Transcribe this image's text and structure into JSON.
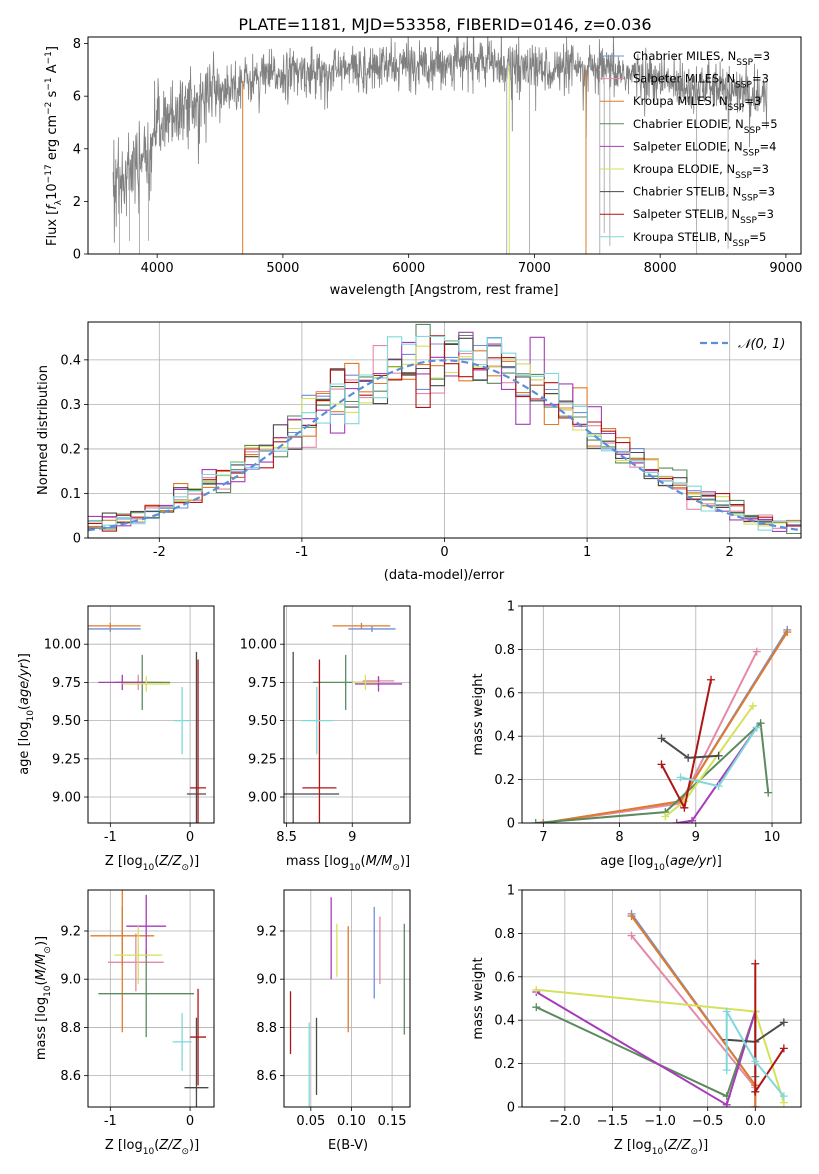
{
  "figure": {
    "title": "PLATE=1181, MJD=53358, FIBERID=0146, z=0.036"
  },
  "colors": {
    "Chabrier MILES": "#6f8fd8",
    "Salpeter MILES": "#e58aa6",
    "Kroupa MILES": "#e07b2a",
    "Chabrier ELODIE": "#5a8a5e",
    "Salpeter ELODIE": "#a63db8",
    "Kroupa ELODIE": "#d4e25a",
    "Chabrier STELIB": "#4a4a4a",
    "Salpeter STELIB": "#b01515",
    "Kroupa STELIB": "#7fd8dc"
  },
  "chart_data": [
    {
      "id": "spectrum",
      "type": "line",
      "title": "PLATE=1181, MJD=53358, FIBERID=0146, z=0.036",
      "xlabel": "wavelength [Angstrom, rest frame]",
      "ylabel": "Flux [fλ10⁻¹⁷ erg cm⁻² s⁻¹ A⁻¹]",
      "xlim": [
        3450,
        9120
      ],
      "ylim": [
        0,
        8.25
      ],
      "xticks": [
        4000,
        5000,
        6000,
        7000,
        8000,
        9000
      ],
      "yticks": [
        0,
        2,
        4,
        6,
        8
      ],
      "grid": false,
      "legend_position": "upper-right",
      "legend": [
        {
          "label": "Chabrier MILES, N",
          "sub": "SSP",
          "suffix": "=3",
          "model": "Chabrier MILES"
        },
        {
          "label": "Salpeter MILES, N",
          "sub": "SSP",
          "suffix": "=3",
          "model": "Salpeter MILES"
        },
        {
          "label": "Kroupa MILES, N",
          "sub": "SSP",
          "suffix": "=3",
          "model": "Kroupa MILES"
        },
        {
          "label": "Chabrier ELODIE, N",
          "sub": "SSP",
          "suffix": "=5",
          "model": "Chabrier ELODIE"
        },
        {
          "label": "Salpeter ELODIE, N",
          "sub": "SSP",
          "suffix": "=4",
          "model": "Salpeter ELODIE"
        },
        {
          "label": "Kroupa ELODIE, N",
          "sub": "SSP",
          "suffix": "=3",
          "model": "Kroupa ELODIE"
        },
        {
          "label": "Chabrier STELIB, N",
          "sub": "SSP",
          "suffix": "=3",
          "model": "Chabrier STELIB"
        },
        {
          "label": "Salpeter STELIB, N",
          "sub": "SSP",
          "suffix": "=3",
          "model": "Salpeter STELIB"
        },
        {
          "label": "Kroupa STELIB, N",
          "sub": "SSP",
          "suffix": "=5",
          "model": "Kroupa STELIB"
        }
      ],
      "continuum": {
        "x": [
          3650,
          3700,
          3800,
          3900,
          4000,
          4100,
          4200,
          4300,
          4400,
          4600,
          4800,
          5000,
          5200,
          5500,
          5800,
          6000,
          6300,
          6600,
          6900,
          7200,
          7500,
          7800,
          8100,
          8400,
          8700,
          8850
        ],
        "y": [
          2.7,
          3.0,
          3.3,
          3.5,
          4.7,
          5.2,
          5.6,
          5.9,
          6.1,
          6.45,
          6.7,
          6.85,
          6.9,
          7.0,
          7.1,
          7.2,
          7.3,
          7.3,
          7.1,
          7.0,
          7.0,
          6.8,
          6.5,
          6.3,
          6.1,
          5.8
        ]
      },
      "model_ranges": {
        "Chabrier MILES": [
          3700,
          7400
        ],
        "Salpeter MILES": [
          3700,
          7400
        ],
        "Kroupa MILES": [
          3700,
          7400
        ],
        "Chabrier ELODIE": [
          3900,
          6800
        ],
        "Salpeter ELODIE": [
          3900,
          6800
        ],
        "Kroupa ELODIE": [
          3900,
          6800
        ],
        "Chabrier STELIB": [
          3650,
          8850
        ],
        "Salpeter STELIB": [
          3650,
          8850
        ],
        "Kroupa STELIB": [
          3650,
          8850
        ]
      }
    },
    {
      "id": "residuals",
      "type": "line",
      "xlabel": "(data-model)/error",
      "ylabel": "Normed distribution",
      "xlim": [
        -2.5,
        2.5
      ],
      "ylim": [
        0,
        0.485
      ],
      "xticks": [
        -2,
        -1,
        0,
        1,
        2
      ],
      "yticks": [
        0.0,
        0.1,
        0.2,
        0.3,
        0.4
      ],
      "grid": true,
      "legend_position": "upper-right",
      "normal_label": "𝒩(0, 1)",
      "normal_color": "#5b8fd8",
      "bins_start": -2.5,
      "bin_width": 0.1,
      "histogram_models": [
        "Chabrier MILES",
        "Salpeter MILES",
        "Kroupa MILES",
        "Chabrier ELODIE",
        "Salpeter ELODIE",
        "Kroupa ELODIE",
        "Chabrier STELIB",
        "Salpeter STELIB",
        "Kroupa STELIB"
      ]
    },
    {
      "id": "age-vs-z",
      "type": "scatter",
      "xlabel": "Z [log₁₀(Z/Z⊙)]",
      "ylabel": "age  [log₁₀(age/yr)]",
      "xlim": [
        -1.28,
        0.3
      ],
      "ylim": [
        8.83,
        10.25
      ],
      "xticks": [
        -1,
        0
      ],
      "yticks": [
        9.0,
        9.25,
        9.5,
        9.75,
        10.0
      ],
      "ytick_labels": [
        "9.00",
        "9.25",
        "9.50",
        "9.75",
        "10.00"
      ],
      "grid": true,
      "errorbars": [
        {
          "model": "Chabrier MILES",
          "x": -1.0,
          "xerr": 0.38,
          "y": 10.1,
          "yerr": 0.02
        },
        {
          "model": "Salpeter MILES",
          "x": -0.65,
          "xerr": 0.3,
          "y": 9.75,
          "yerr": 0.05
        },
        {
          "model": "Kroupa MILES",
          "x": -1.0,
          "xerr": 0.38,
          "y": 10.12,
          "yerr": 0.02
        },
        {
          "model": "Chabrier ELODIE",
          "x": -0.6,
          "xerr": 0.35,
          "y": 9.75,
          "yerr": 0.18
        },
        {
          "model": "Salpeter ELODIE",
          "x": -0.85,
          "xerr": 0.3,
          "y": 9.75,
          "yerr": 0.05
        },
        {
          "model": "Kroupa ELODIE",
          "x": -0.55,
          "xerr": 0.3,
          "y": 9.74,
          "yerr": 0.05
        },
        {
          "model": "Chabrier STELIB",
          "x": 0.08,
          "xerr": 0.12,
          "y": 9.02,
          "yerr": 0.93
        },
        {
          "model": "Salpeter STELIB",
          "x": 0.1,
          "xerr": 0.1,
          "y": 9.06,
          "yerr": 0.84
        },
        {
          "model": "Kroupa STELIB",
          "x": -0.1,
          "xerr": 0.1,
          "y": 9.5,
          "yerr": 0.22
        }
      ]
    },
    {
      "id": "age-vs-mass",
      "type": "scatter",
      "xlabel": "mass [log₁₀(M/M⊙)]",
      "xlim": [
        8.48,
        9.44
      ],
      "ylim": [
        8.83,
        10.25
      ],
      "xticks": [
        8.5,
        9.0
      ],
      "yticks": [
        9.0,
        9.25,
        9.5,
        9.75,
        10.0
      ],
      "ytick_labels": [
        "9.00",
        "9.25",
        "9.50",
        "9.75",
        "10.00"
      ],
      "grid": true,
      "errorbars": [
        {
          "model": "Chabrier MILES",
          "x": 9.15,
          "xerr": 0.18,
          "y": 10.1,
          "yerr": 0.02
        },
        {
          "model": "Salpeter MILES",
          "x": 9.2,
          "xerr": 0.12,
          "y": 9.76,
          "yerr": 0.03
        },
        {
          "model": "Kroupa MILES",
          "x": 9.07,
          "xerr": 0.22,
          "y": 10.12,
          "yerr": 0.02
        },
        {
          "model": "Chabrier ELODIE",
          "x": 8.95,
          "xerr": 0.25,
          "y": 9.75,
          "yerr": 0.18
        },
        {
          "model": "Salpeter ELODIE",
          "x": 9.2,
          "xerr": 0.18,
          "y": 9.74,
          "yerr": 0.05
        },
        {
          "model": "Kroupa ELODIE",
          "x": 9.1,
          "xerr": 0.1,
          "y": 9.75,
          "yerr": 0.05
        },
        {
          "model": "Chabrier STELIB",
          "x": 8.55,
          "xerr": 0.35,
          "y": 9.02,
          "yerr": 0.93
        },
        {
          "model": "Salpeter STELIB",
          "x": 8.75,
          "xerr": 0.13,
          "y": 9.06,
          "yerr": 0.84
        },
        {
          "model": "Kroupa STELIB",
          "x": 8.73,
          "xerr": 0.12,
          "y": 9.5,
          "yerr": 0.22
        }
      ]
    },
    {
      "id": "mass-weight-vs-age",
      "type": "line",
      "xlabel": "age  [log₁₀(age/yr)]",
      "ylabel": "mass weight",
      "xlim": [
        6.72,
        10.38
      ],
      "ylim": [
        0,
        1.0
      ],
      "xticks": [
        7,
        8,
        9,
        10
      ],
      "yticks": [
        0.0,
        0.2,
        0.4,
        0.6,
        0.8,
        1.0
      ],
      "grid": true,
      "series": [
        {
          "model": "Chabrier MILES",
          "points": [
            [
              7.0,
              0.0
            ],
            [
              8.8,
              0.1
            ],
            [
              10.2,
              0.89
            ]
          ]
        },
        {
          "model": "Salpeter MILES",
          "points": [
            [
              7.0,
              0.0
            ],
            [
              8.8,
              0.09
            ],
            [
              9.8,
              0.79
            ]
          ]
        },
        {
          "model": "Kroupa MILES",
          "points": [
            [
              7.0,
              0.0
            ],
            [
              8.8,
              0.1
            ],
            [
              10.2,
              0.88
            ]
          ]
        },
        {
          "model": "Chabrier ELODIE",
          "points": [
            [
              6.9,
              0.0
            ],
            [
              8.6,
              0.05
            ],
            [
              9.85,
              0.46
            ],
            [
              9.95,
              0.14
            ]
          ]
        },
        {
          "model": "Salpeter ELODIE",
          "points": [
            [
              8.75,
              0.0
            ],
            [
              8.95,
              0.01
            ],
            [
              9.8,
              0.44
            ]
          ]
        },
        {
          "model": "Kroupa ELODIE",
          "points": [
            [
              8.6,
              0.03
            ],
            [
              8.85,
              0.1
            ],
            [
              9.75,
              0.54
            ]
          ]
        },
        {
          "model": "Chabrier STELIB",
          "points": [
            [
              8.55,
              0.39
            ],
            [
              8.9,
              0.3
            ],
            [
              9.3,
              0.31
            ]
          ]
        },
        {
          "model": "Salpeter STELIB",
          "points": [
            [
              8.55,
              0.27
            ],
            [
              8.85,
              0.07
            ],
            [
              9.2,
              0.66
            ]
          ]
        },
        {
          "model": "Kroupa STELIB",
          "points": [
            [
              8.8,
              0.21
            ],
            [
              9.3,
              0.17
            ],
            [
              9.8,
              0.44
            ]
          ]
        }
      ]
    },
    {
      "id": "mass-vs-z",
      "type": "scatter",
      "xlabel": "Z [log₁₀(Z/Z⊙)]",
      "ylabel": "mass [log₁₀(M/M⊙)]",
      "xlim": [
        -1.28,
        0.3
      ],
      "ylim": [
        8.47,
        9.37
      ],
      "xticks": [
        -1,
        0
      ],
      "yticks": [
        8.6,
        8.8,
        9.0,
        9.2
      ],
      "ytick_labels": [
        "8.6",
        "8.8",
        "9.0",
        "9.2"
      ],
      "grid": true,
      "errorbars": [
        {
          "model": "Chabrier MILES",
          "x": -0.85,
          "xerr": 0.02,
          "y": 9.18,
          "yerr": 0.12
        },
        {
          "model": "Salpeter MILES",
          "x": -0.68,
          "xerr": 0.35,
          "y": 9.07,
          "yerr": 0.12
        },
        {
          "model": "Kroupa MILES",
          "x": -0.85,
          "xerr": 0.4,
          "y": 9.18,
          "yerr": 0.4
        },
        {
          "model": "Chabrier ELODIE",
          "x": -0.55,
          "xerr": 0.6,
          "y": 8.94,
          "yerr": 0.18
        },
        {
          "model": "Salpeter ELODIE",
          "x": -0.55,
          "xerr": 0.25,
          "y": 9.22,
          "yerr": 0.13
        },
        {
          "model": "Kroupa ELODIE",
          "x": -0.65,
          "xerr": 0.3,
          "y": 9.1,
          "yerr": 0.12
        },
        {
          "model": "Chabrier STELIB",
          "x": 0.08,
          "xerr": 0.15,
          "y": 8.55,
          "yerr": 0.29
        },
        {
          "model": "Salpeter STELIB",
          "x": 0.1,
          "xerr": 0.1,
          "y": 8.76,
          "yerr": 0.2
        },
        {
          "model": "Kroupa STELIB",
          "x": -0.1,
          "xerr": 0.12,
          "y": 8.74,
          "yerr": 0.12
        }
      ]
    },
    {
      "id": "mass-vs-ebv",
      "type": "scatter",
      "xlabel": "E(B-V)",
      "xlim": [
        0.017,
        0.172
      ],
      "ylim": [
        8.47,
        9.37
      ],
      "xticks": [
        0.05,
        0.1,
        0.15
      ],
      "xtick_labels": [
        "0.05",
        "0.10",
        "0.15"
      ],
      "yticks": [
        8.6,
        8.8,
        9.0,
        9.2
      ],
      "ytick_labels": [
        "8.6",
        "8.8",
        "9.0",
        "9.2"
      ],
      "grid": true,
      "errorbars": [
        {
          "model": "Chabrier MILES",
          "x": 0.128,
          "xerr": 0,
          "y": 9.11,
          "yerr": 0.19
        },
        {
          "model": "Salpeter MILES",
          "x": 0.135,
          "xerr": 0,
          "y": 9.12,
          "yerr": 0.14
        },
        {
          "model": "Kroupa MILES",
          "x": 0.096,
          "xerr": 0,
          "y": 9.0,
          "yerr": 0.22
        },
        {
          "model": "Chabrier ELODIE",
          "x": 0.165,
          "xerr": 0,
          "y": 9.0,
          "yerr": 0.23
        },
        {
          "model": "Salpeter ELODIE",
          "x": 0.075,
          "xerr": 0,
          "y": 9.17,
          "yerr": 0.17
        },
        {
          "model": "Kroupa ELODIE",
          "x": 0.082,
          "xerr": 0,
          "y": 9.12,
          "yerr": 0.11
        },
        {
          "model": "Chabrier STELIB",
          "x": 0.057,
          "xerr": 0,
          "y": 8.68,
          "yerr": 0.16
        },
        {
          "model": "Salpeter STELIB",
          "x": 0.025,
          "xerr": 0,
          "y": 8.82,
          "yerr": 0.13
        },
        {
          "model": "Kroupa STELIB",
          "x": 0.048,
          "xerr": 0,
          "y": 8.64,
          "yerr": 0.18
        }
      ]
    },
    {
      "id": "mass-weight-vs-z",
      "type": "line",
      "xlabel": "Z [log₁₀(Z/Z⊙)]",
      "ylabel": "mass weight",
      "xlim": [
        -2.45,
        0.48
      ],
      "ylim": [
        0,
        1.0
      ],
      "xticks": [
        -2.0,
        -1.5,
        -1.0,
        -0.5,
        0.0
      ],
      "xtick_labels": [
        "−2.0",
        "−1.5",
        "−1.0",
        "−0.5",
        "0.0"
      ],
      "yticks": [
        0.0,
        0.2,
        0.4,
        0.6,
        0.8,
        1.0
      ],
      "grid": true,
      "series": [
        {
          "model": "Chabrier MILES",
          "points": [
            [
              -1.3,
              0.89
            ],
            [
              0.0,
              0.1
            ],
            [
              0.0,
              0.0
            ]
          ]
        },
        {
          "model": "Salpeter MILES",
          "points": [
            [
              -1.3,
              0.79
            ],
            [
              0.0,
              0.09
            ],
            [
              0.0,
              0.0
            ]
          ]
        },
        {
          "model": "Kroupa MILES",
          "points": [
            [
              -1.3,
              0.88
            ],
            [
              0.0,
              0.1
            ],
            [
              0.0,
              0.0
            ]
          ]
        },
        {
          "model": "Chabrier ELODIE",
          "points": [
            [
              -2.3,
              0.46
            ],
            [
              -0.3,
              0.05
            ],
            [
              0.0,
              0.44
            ],
            [
              0.0,
              0.14
            ]
          ]
        },
        {
          "model": "Salpeter ELODIE",
          "points": [
            [
              -2.3,
              0.53
            ],
            [
              -0.3,
              0.01
            ],
            [
              0.0,
              0.44
            ]
          ]
        },
        {
          "model": "Kroupa ELODIE",
          "points": [
            [
              -2.3,
              0.54
            ],
            [
              0.0,
              0.44
            ],
            [
              0.3,
              0.02
            ]
          ]
        },
        {
          "model": "Chabrier STELIB",
          "points": [
            [
              -0.3,
              0.31
            ],
            [
              0.0,
              0.3
            ],
            [
              0.3,
              0.39
            ]
          ]
        },
        {
          "model": "Salpeter STELIB",
          "points": [
            [
              0.0,
              0.66
            ],
            [
              0.0,
              0.07
            ],
            [
              0.3,
              0.27
            ]
          ]
        },
        {
          "model": "Kroupa STELIB",
          "points": [
            [
              -0.3,
              0.17
            ],
            [
              -0.3,
              0.44
            ],
            [
              0.0,
              0.21
            ],
            [
              0.3,
              0.05
            ]
          ]
        }
      ]
    }
  ]
}
